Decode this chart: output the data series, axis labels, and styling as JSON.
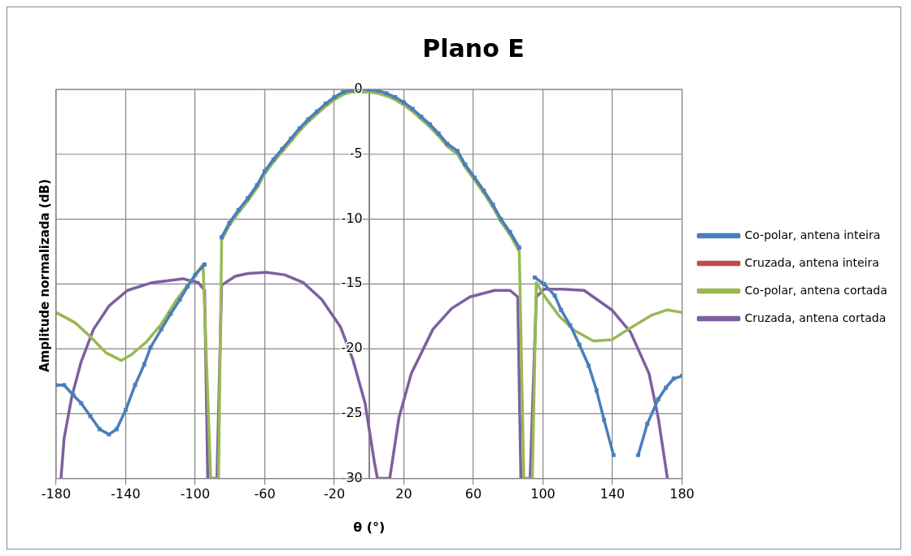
{
  "chart_data": {
    "type": "line",
    "title": "Plano E",
    "xlabel": "θ (°)",
    "ylabel": "Amplitude normalizada (dB)",
    "xlim": [
      -180,
      180
    ],
    "xticks": [
      -180,
      -140,
      -100,
      -60,
      -20,
      20,
      60,
      100,
      140,
      180
    ],
    "ylim": [
      -30,
      0
    ],
    "yticks": [
      -30,
      -25,
      -20,
      -15,
      -10,
      -5,
      0
    ],
    "grid": true,
    "legend": "right",
    "series": [
      {
        "name": "Co-polar, antena inteira",
        "color": "#4a7ebb",
        "marker": "square",
        "x": [
          -180,
          -175.4,
          -170,
          -165.6,
          -160.3,
          -155,
          -149.6,
          -145.2,
          -139.9,
          -134.6,
          -129.3,
          -125.7,
          -119.5,
          -114.1,
          -108.8,
          -104.4,
          -100,
          -94.6,
          -90,
          -84.8,
          -80.4,
          -75.1,
          -69.8,
          -64.5,
          -60,
          -55,
          -50,
          -45,
          -40,
          -35,
          -30,
          -25,
          -20,
          -15,
          -10,
          -5,
          0,
          5,
          10,
          15,
          20,
          25,
          30,
          35,
          40,
          45,
          50.9,
          55.3,
          60.7,
          66,
          71.3,
          75.8,
          81.1,
          86.4,
          90,
          95.3,
          100.6,
          106.8,
          110.4,
          115.7,
          121,
          126.3,
          130.8,
          135.2,
          140.6,
          145,
          150,
          154.8,
          160,
          166.3,
          170.7,
          175.2,
          180
        ],
        "values": [
          -22.8,
          -22.8,
          -23.6,
          -24.2,
          -25.2,
          -26.2,
          -26.6,
          -26.2,
          -24.7,
          -22.8,
          -21.2,
          -19.9,
          -18.5,
          -17.3,
          -16.2,
          -15.2,
          -14.3,
          -13.5,
          null,
          -11.4,
          -10.3,
          -9.3,
          -8.4,
          -7.4,
          -6.3,
          -5.4,
          -4.6,
          -3.8,
          -3.0,
          -2.3,
          -1.7,
          -1.1,
          -0.6,
          -0.2,
          -0.05,
          0,
          0,
          -0.1,
          -0.3,
          -0.6,
          -1.0,
          -1.5,
          -2.1,
          -2.7,
          -3.4,
          -4.2,
          -4.75,
          -5.8,
          -6.8,
          -7.8,
          -8.9,
          -10.0,
          -11.0,
          -12.2,
          null,
          -14.5,
          -15.0,
          -15.9,
          -17.0,
          -18.2,
          -19.7,
          -21.3,
          -23.2,
          -25.5,
          -28.2,
          null,
          null,
          -28.2,
          -25.8,
          -23.9,
          -23.0,
          -22.3,
          -22.1
        ]
      },
      {
        "name": "Cruzada, antena inteira",
        "color": "#be4b48",
        "marker": "none"
      },
      {
        "name": "Co-polar, antena cortada",
        "color": "#98b954",
        "marker": "none",
        "x": [
          -180,
          -169,
          -160,
          -151.4,
          -142.6,
          -137.2,
          -128.3,
          -119.5,
          -110.6,
          -100,
          -95.5,
          -91.1,
          -86.6,
          -84.8,
          -80.4,
          -75.1,
          -69.8,
          -64.5,
          -60,
          -55,
          -50,
          -45,
          -40,
          -35,
          -30,
          -25,
          -20,
          -15,
          -10,
          -5,
          0,
          5,
          10,
          15,
          20,
          25,
          30,
          35,
          40,
          45,
          50.9,
          55.3,
          60.7,
          66,
          71.3,
          75.8,
          81.1,
          86.4,
          89,
          93.9,
          96.2,
          100.6,
          109.5,
          118.3,
          129,
          139.6,
          150.3,
          162.7,
          171.6,
          180
        ],
        "values": [
          -17.2,
          -18.0,
          -19.1,
          -20.3,
          -20.9,
          -20.5,
          -19.5,
          -18.1,
          -16.2,
          -14.3,
          -13.5,
          -30,
          -30,
          -11.6,
          -10.5,
          -9.5,
          -8.6,
          -7.6,
          -6.5,
          -5.6,
          -4.8,
          -4.0,
          -3.2,
          -2.5,
          -1.9,
          -1.3,
          -0.8,
          -0.4,
          -0.2,
          -0.2,
          -0.2,
          -0.3,
          -0.5,
          -0.8,
          -1.2,
          -1.7,
          -2.3,
          -2.9,
          -3.6,
          -4.4,
          -5.0,
          -6.0,
          -7.0,
          -8.0,
          -9.1,
          -10.2,
          -11.2,
          -12.5,
          -30,
          -30,
          -14.9,
          -15.9,
          -17.5,
          -18.6,
          -19.4,
          -19.3,
          -18.4,
          -17.4,
          -17.0,
          -17.2
        ]
      },
      {
        "name": "Cruzada, antena cortada",
        "color": "#7d60a0",
        "marker": "none",
        "x": [
          -177.2,
          -175.4,
          -171,
          -165.6,
          -158.5,
          -149.6,
          -139,
          -124.8,
          -107.1,
          -98.2,
          -94.6,
          -92.8,
          -87.5,
          -84.8,
          -76.9,
          -69.8,
          -59.1,
          -48.5,
          -37.8,
          -27.2,
          -16.5,
          -9.4,
          -2.3,
          3,
          4.8,
          11.9,
          17.2,
          24.3,
          36.7,
          47.4,
          58,
          72.2,
          81.1,
          85.5,
          87.3,
          92.6,
          96.2,
          100.6,
          111.3,
          123.7,
          139.6,
          150.3,
          161,
          166.3,
          171.6
        ],
        "values": [
          -30,
          -26.9,
          -23.7,
          -21.0,
          -18.5,
          -16.7,
          -15.5,
          -14.9,
          -14.6,
          -14.9,
          -15.5,
          -30,
          -30,
          -15.1,
          -14.4,
          -14.2,
          -14.1,
          -14.3,
          -14.9,
          -16.2,
          -18.3,
          -20.8,
          -24.2,
          -28.7,
          -30,
          -30,
          -25.3,
          -21.9,
          -18.5,
          -16.9,
          -16.0,
          -15.5,
          -15.5,
          -16.0,
          -30,
          -30,
          -16.0,
          -15.4,
          -15.4,
          -15.5,
          -17.0,
          -18.7,
          -21.9,
          -25.3,
          -30
        ]
      }
    ]
  }
}
